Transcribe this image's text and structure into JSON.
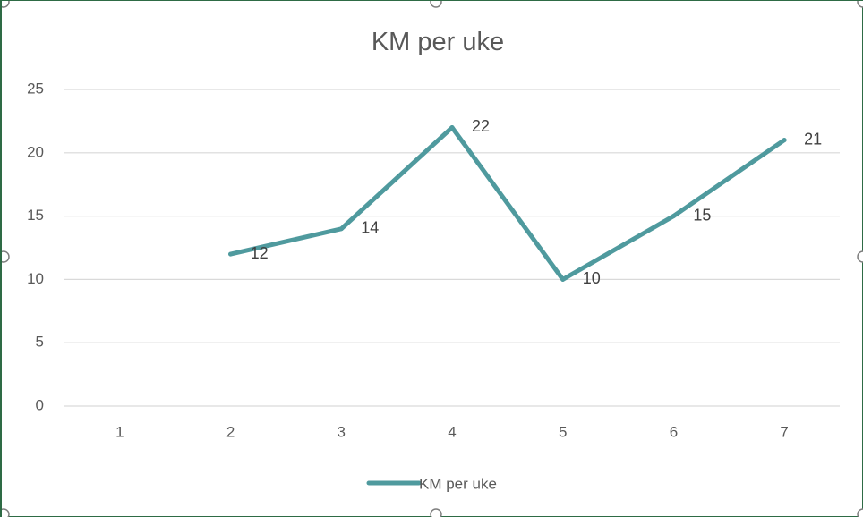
{
  "chart_data": {
    "type": "line",
    "title": "KM per uke",
    "categories": [
      "1",
      "2",
      "3",
      "4",
      "5",
      "6",
      "7"
    ],
    "series": [
      {
        "name": "KM per uke",
        "values": [
          null,
          12,
          14,
          22,
          10,
          15,
          21
        ],
        "color": "#4f9a9e"
      }
    ],
    "ylim": [
      0,
      25
    ],
    "yticks": [
      0,
      5,
      10,
      15,
      20,
      25
    ],
    "grid": true,
    "legend": "bottom",
    "data_labels": true
  }
}
